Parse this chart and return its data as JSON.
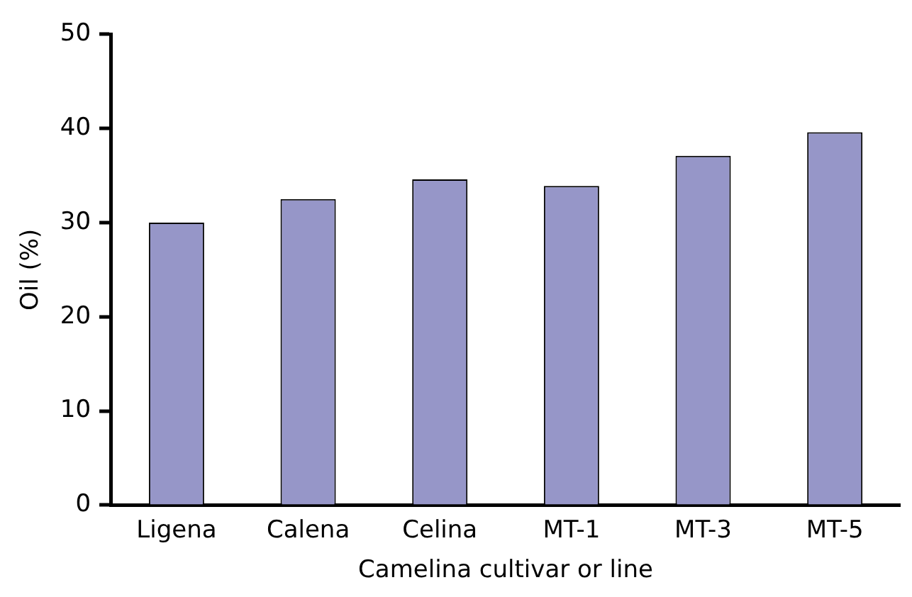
{
  "chart_data": {
    "type": "bar",
    "xlabel": "Camelina cultivar or line",
    "ylabel": "Oil (%)",
    "categories": [
      "Ligena",
      "Calena",
      "Celina",
      "MT-1",
      "MT-3",
      "MT-5"
    ],
    "values": [
      30.0,
      32.5,
      34.6,
      33.9,
      37.1,
      39.6
    ],
    "color": "#9696c8",
    "ylim": [
      0,
      50
    ],
    "yticks": [
      0,
      10,
      20,
      30,
      40,
      50
    ],
    "grid": false,
    "legend": false
  }
}
